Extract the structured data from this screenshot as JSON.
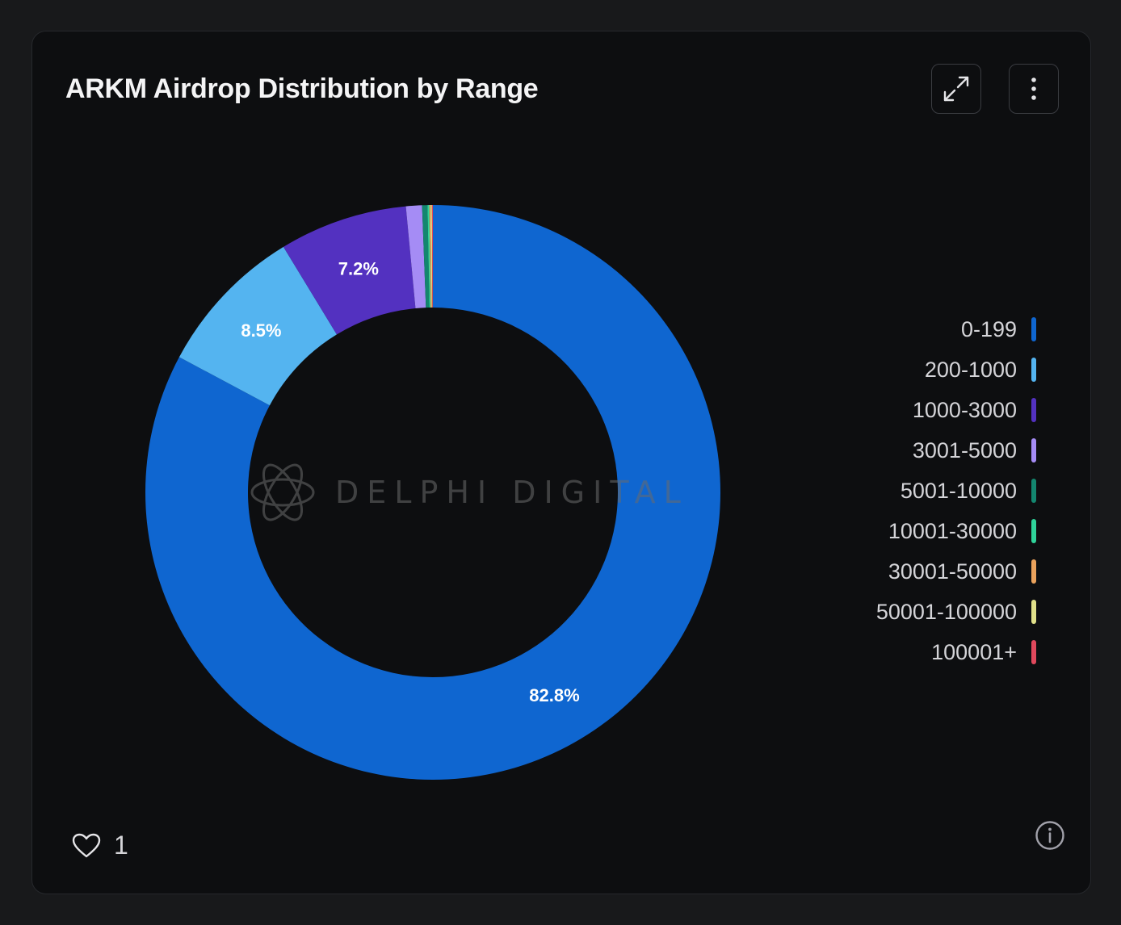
{
  "header": {
    "title": "ARKM Airdrop Distribution by Range"
  },
  "toolbar": {
    "expand_icon": "expand-icon",
    "menu_icon": "more-vertical-icon"
  },
  "watermark": {
    "text": "DELPHI DIGITAL"
  },
  "chart_data": {
    "type": "pie",
    "donut": true,
    "title": "ARKM Airdrop Distribution by Range",
    "legend_position": "right",
    "categories": [
      "0-199",
      "200-1000",
      "1000-3000",
      "3001-5000",
      "5001-10000",
      "10001-30000",
      "30001-50000",
      "50001-100000",
      "100001+"
    ],
    "values": [
      82.8,
      8.5,
      7.2,
      0.9,
      0.3,
      0.1,
      0.08,
      0.07,
      0.05
    ],
    "data_labels": [
      "82.8%",
      "8.5%",
      "7.2%",
      "",
      "",
      "",
      "",
      "",
      ""
    ],
    "colors": [
      "#0f66d0",
      "#54b4f0",
      "#5331c0",
      "#a58cf5",
      "#13866f",
      "#2fd39a",
      "#eaa25c",
      "#e0e08a",
      "#e0485c"
    ]
  },
  "footer": {
    "like_icon": "heart-icon",
    "like_count": "1",
    "info_icon": "info-icon"
  }
}
